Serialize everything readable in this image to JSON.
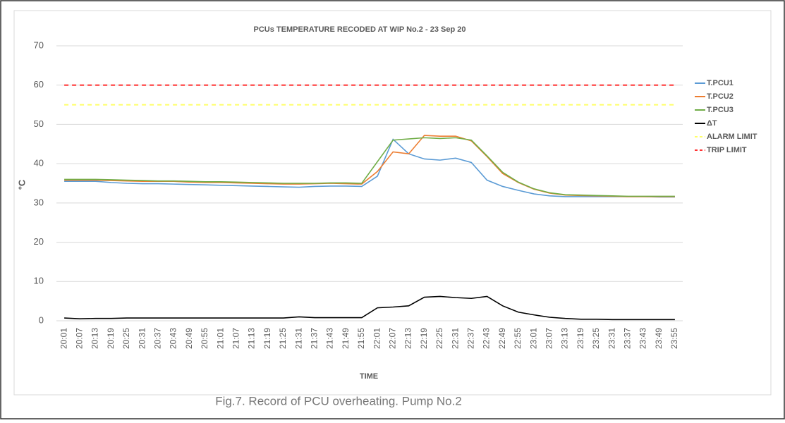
{
  "chart_data": {
    "type": "line",
    "title": "PCUs TEMPERATURE RECODED AT WIP No.2 - 23 Sep 20",
    "y_label": "°C",
    "x_label": "TIME",
    "caption": "Fig.7. Record of PCU overheating. Pump No.2",
    "categories": [
      "20:01",
      "20:07",
      "20:13",
      "20:19",
      "20:25",
      "20:31",
      "20:37",
      "20:43",
      "20:49",
      "20:55",
      "21:01",
      "21:07",
      "21:13",
      "21:19",
      "21:25",
      "21:31",
      "21:37",
      "21:43",
      "21:49",
      "21:55",
      "22:01",
      "22:07",
      "22:13",
      "22:19",
      "22:25",
      "22:31",
      "22:37",
      "22:43",
      "22:49",
      "22:55",
      "23:01",
      "23:07",
      "23:13",
      "23:19",
      "23:25",
      "23:31",
      "23:37",
      "23:43",
      "23:49",
      "23:55"
    ],
    "series": [
      {
        "name": "T.PCU1",
        "color": "#5b9bd5",
        "values": [
          35.5,
          35.5,
          35.5,
          35.2,
          35.0,
          34.9,
          34.9,
          34.8,
          34.7,
          34.6,
          34.5,
          34.4,
          34.3,
          34.2,
          34.1,
          34.0,
          34.2,
          34.3,
          34.3,
          34.2,
          36.8,
          46.2,
          42.5,
          41.2,
          40.9,
          41.4,
          40.3,
          35.8,
          34.2,
          33.2,
          32.3,
          31.8,
          31.6,
          31.6,
          31.6,
          31.6,
          31.6,
          31.6,
          31.5,
          31.5
        ]
      },
      {
        "name": "T.PCU2",
        "color": "#ed7d31",
        "values": [
          35.8,
          35.8,
          35.8,
          35.7,
          35.6,
          35.5,
          35.5,
          35.5,
          35.3,
          35.2,
          35.2,
          35.1,
          35.0,
          34.9,
          34.8,
          34.8,
          34.9,
          35.0,
          34.9,
          34.8,
          38.0,
          43.0,
          42.5,
          47.2,
          47.0,
          47.0,
          45.8,
          41.8,
          37.5,
          35.2,
          33.5,
          32.5,
          32.0,
          31.9,
          31.8,
          31.7,
          31.6,
          31.6,
          31.6,
          31.6
        ]
      },
      {
        "name": "T.PCU3",
        "color": "#70ad47",
        "values": [
          36.0,
          36.0,
          36.0,
          35.9,
          35.8,
          35.7,
          35.6,
          35.6,
          35.5,
          35.4,
          35.4,
          35.3,
          35.2,
          35.1,
          35.0,
          35.0,
          35.0,
          35.1,
          35.1,
          35.0,
          40.5,
          46.0,
          46.3,
          46.6,
          46.4,
          46.6,
          46.0,
          42.0,
          37.8,
          35.3,
          33.6,
          32.6,
          32.1,
          32.0,
          31.9,
          31.8,
          31.7,
          31.7,
          31.7,
          31.7
        ]
      },
      {
        "name": "ΔT",
        "color": "#000000",
        "values": [
          0.7,
          0.5,
          0.6,
          0.6,
          0.7,
          0.7,
          0.7,
          0.7,
          0.7,
          0.7,
          0.7,
          0.7,
          0.7,
          0.7,
          0.7,
          1.0,
          0.8,
          0.8,
          0.8,
          0.8,
          3.3,
          3.5,
          3.8,
          6.0,
          6.2,
          5.9,
          5.7,
          6.2,
          3.8,
          2.2,
          1.5,
          0.9,
          0.6,
          0.4,
          0.4,
          0.3,
          0.3,
          0.3,
          0.3,
          0.3
        ]
      }
    ],
    "hlines": [
      {
        "name": "ALARM LIMIT",
        "color": "#ffff66",
        "value": 55
      },
      {
        "name": "TRIP LIMIT",
        "color": "#ff3333",
        "value": 60
      }
    ],
    "ylim": [
      0,
      70
    ],
    "yticks": [
      0,
      10,
      20,
      30,
      40,
      50,
      60,
      70
    ],
    "grid": true,
    "legend": "right"
  }
}
